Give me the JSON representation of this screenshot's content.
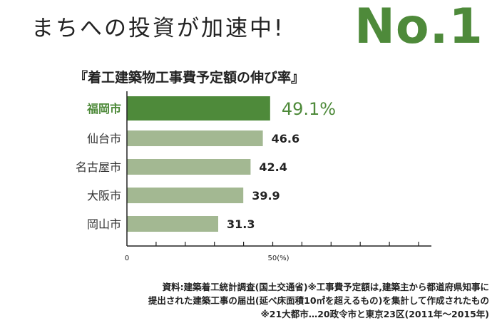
{
  "header": {
    "headline": "まちへの投資が加速中!",
    "rank": "No.1"
  },
  "chart_data": {
    "type": "bar",
    "orientation": "horizontal",
    "title": "『着工建築物工事費予定額の伸び率』",
    "categories": [
      "福岡市",
      "仙台市",
      "名古屋市",
      "大阪市",
      "岡山市"
    ],
    "values": [
      49.1,
      46.6,
      42.4,
      39.9,
      31.3
    ],
    "value_labels": [
      "49.1%",
      "46.6",
      "42.4",
      "39.9",
      "31.3"
    ],
    "highlight_index": 0,
    "xlim": [
      0,
      100
    ],
    "x_ticks": [
      0,
      50
    ],
    "x_tick_labels": [
      "0",
      "50(%)"
    ],
    "colors": {
      "highlight": "#4e8a3a",
      "normal": "#a3b892",
      "axis": "#222222"
    }
  },
  "footnotes": {
    "line1": "資料:建築着工統計調査(国土交通省)※工事費予定額は,建築主から都道府県知事に",
    "line2": "提出された建築工事の届出(延べ床面積10㎡を超えるもの)を集計して作成されたもの",
    "line3": "※21大都市…20政令市と東京23区(2011年〜2015年)"
  }
}
